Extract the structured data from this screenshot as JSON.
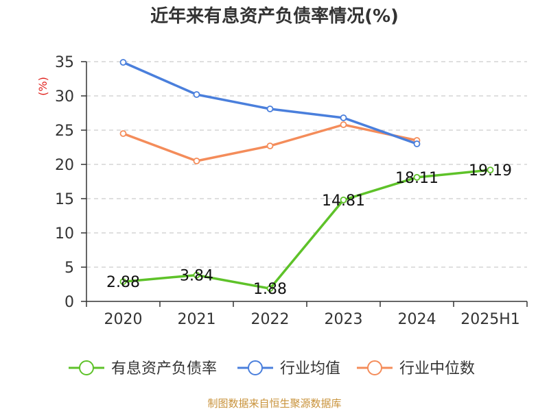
{
  "chart_data": {
    "type": "line",
    "title": "近年来有息资产负债率情况(%)",
    "ylabel": "(%)",
    "xlabel": "",
    "categories": [
      "2020",
      "2021",
      "2022",
      "2023",
      "2024",
      "2025H1"
    ],
    "ylim": [
      0,
      35
    ],
    "yticks": [
      0,
      5,
      10,
      15,
      20,
      25,
      30,
      35
    ],
    "grid": true,
    "legend_position": "bottom",
    "series": [
      {
        "name": "有息资产负债率",
        "color": "#5ec229",
        "values": [
          2.88,
          3.84,
          1.88,
          14.81,
          18.11,
          19.19
        ],
        "labels": [
          "2.88",
          "3.84",
          "1.88",
          "14.81",
          "18.11",
          "19.19"
        ]
      },
      {
        "name": "行业均值",
        "color": "#4a7fdc",
        "values": [
          34.9,
          30.2,
          28.1,
          26.8,
          23.0,
          null
        ]
      },
      {
        "name": "行业中位数",
        "color": "#f48c5a",
        "values": [
          24.5,
          20.5,
          22.7,
          25.8,
          23.5,
          null
        ]
      }
    ]
  },
  "source": "制图数据来自恒生聚源数据库"
}
